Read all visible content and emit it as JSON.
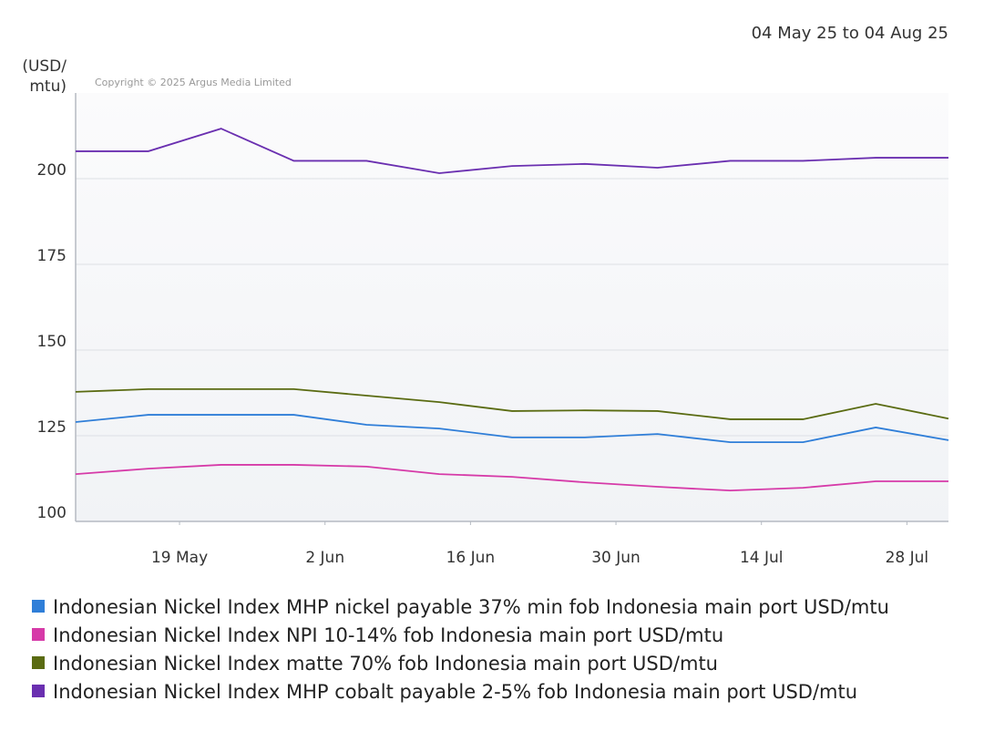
{
  "chart_data": {
    "type": "line",
    "subtitle": "04 May 25 to 04 Aug 25",
    "y_label": [
      "(USD/",
      "mtu)"
    ],
    "annotation": "Copyright © 2025 Argus Media Limited",
    "x": [
      "2025-05-09",
      "2025-05-16",
      "2025-05-23",
      "2025-05-30",
      "2025-06-06",
      "2025-06-13",
      "2025-06-20",
      "2025-06-27",
      "2025-07-04",
      "2025-07-11",
      "2025-07-18",
      "2025-07-25",
      "2025-08-01"
    ],
    "xlim": [
      "2025-05-09",
      "2025-08-01"
    ],
    "xticks": [
      {
        "value": "2025-05-19",
        "label": "19 May"
      },
      {
        "value": "2025-06-02",
        "label": "2 Jun"
      },
      {
        "value": "2025-06-16",
        "label": "16 Jun"
      },
      {
        "value": "2025-06-30",
        "label": "30 Jun"
      },
      {
        "value": "2025-07-14",
        "label": "14 Jul"
      },
      {
        "value": "2025-07-28",
        "label": "28 Jul"
      }
    ],
    "ylim": [
      100,
      225
    ],
    "yticks": [
      100,
      125,
      150,
      175,
      200
    ],
    "grid": true,
    "legend": "bottom",
    "series": [
      {
        "name": "Indonesian Nickel Index MHP nickel payable 37% min fob Indonesia main port USD/mtu",
        "color": "#2f7ed8",
        "values": [
          129,
          131.1,
          131.1,
          131.1,
          128.2,
          127.1,
          124.5,
          124.5,
          125.5,
          123.1,
          123.1,
          127.4,
          123.7
        ]
      },
      {
        "name": "Indonesian Nickel Index NPI 10-14% fob Indonesia main port USD/mtu",
        "color": "#d63aa8",
        "values": [
          113.8,
          115.4,
          116.5,
          116.5,
          116,
          113.8,
          113,
          111.4,
          110.1,
          109,
          109.8,
          111.7,
          111.7
        ]
      },
      {
        "name": "Indonesian Nickel Index matte 70% fob Indonesia main port USD/mtu",
        "color": "#5a6b12",
        "values": [
          137.8,
          138.6,
          138.6,
          138.6,
          136.7,
          134.8,
          132.2,
          132.4,
          132.2,
          129.8,
          129.8,
          134.3,
          130
        ]
      },
      {
        "name": "Indonesian Nickel Index MHP cobalt payable 2-5% fob Indonesia main port USD/mtu",
        "color": "#6a2fb0",
        "values": [
          208,
          208,
          214.6,
          205.2,
          205.2,
          201.6,
          203.7,
          204.3,
          203.2,
          205.2,
          205.2,
          206.1,
          206.1
        ]
      }
    ]
  }
}
